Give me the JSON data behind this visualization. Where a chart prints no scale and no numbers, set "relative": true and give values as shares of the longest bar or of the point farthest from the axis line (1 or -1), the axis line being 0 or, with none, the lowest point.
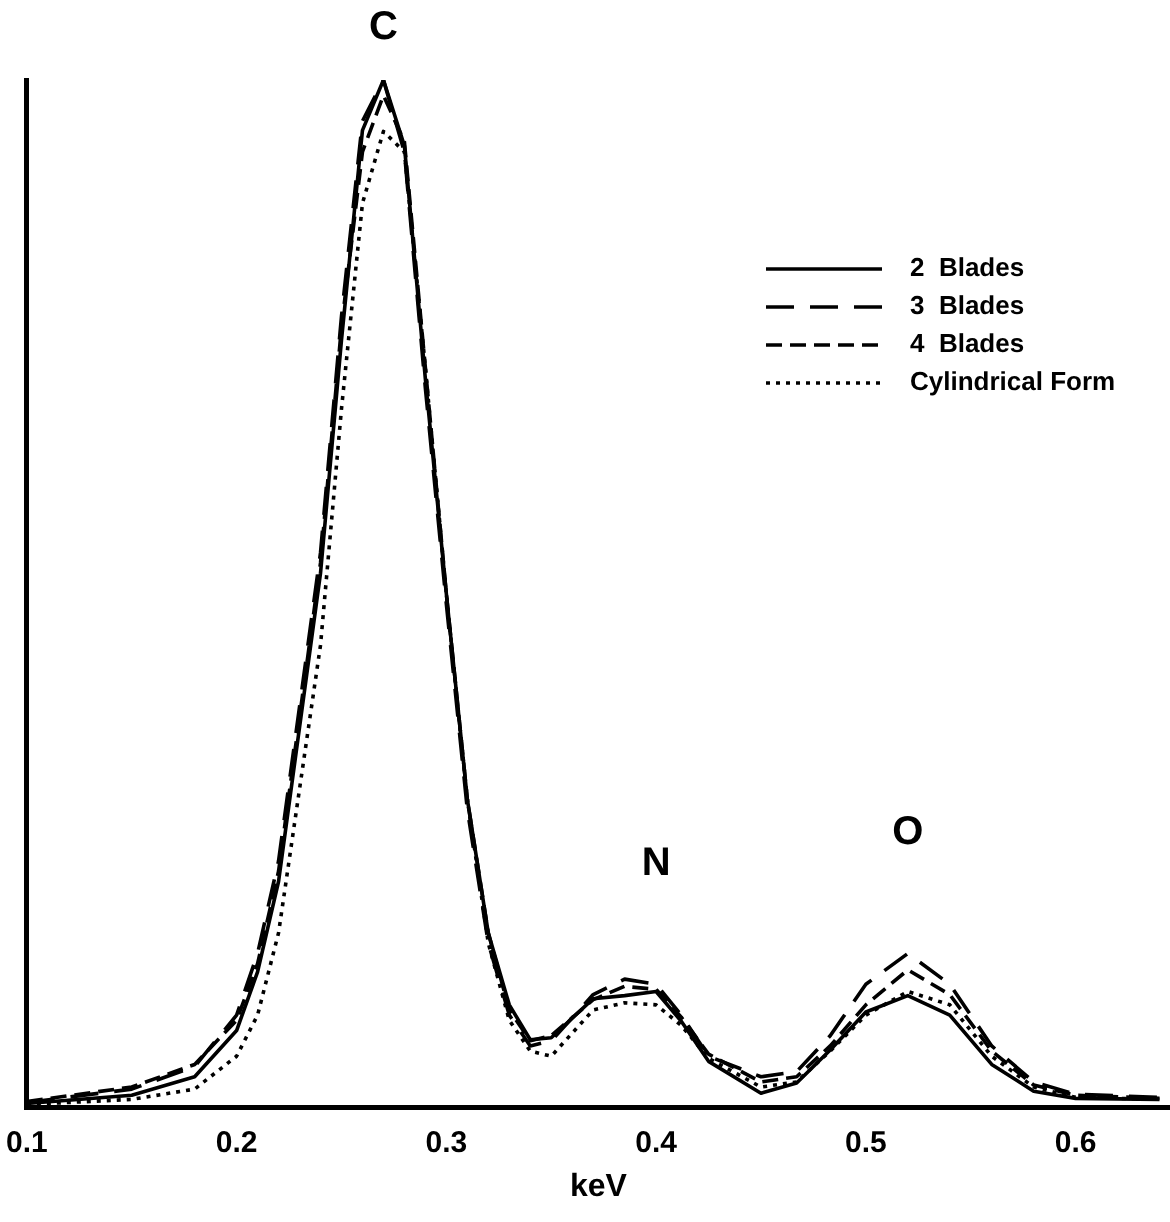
{
  "chart_data": {
    "type": "line",
    "xlabel": "keV",
    "relative": true,
    "legend": "top right",
    "marker": "none",
    "grid": false,
    "x": [
      0.1,
      0.15,
      0.18,
      0.2,
      0.21,
      0.22,
      0.24,
      0.25,
      0.26,
      0.27,
      0.28,
      0.29,
      0.3,
      0.31,
      0.32,
      0.33,
      0.34,
      0.35,
      0.37,
      0.385,
      0.4,
      0.412,
      0.425,
      0.45,
      0.467,
      0.483,
      0.5,
      0.52,
      0.54,
      0.56,
      0.58,
      0.6,
      0.64
    ],
    "xlim": [
      0.1,
      0.645
    ],
    "xticks": [
      0.1,
      0.2,
      0.3,
      0.4,
      0.5,
      0.6
    ],
    "series": [
      {
        "name": "2  Blades",
        "color": "#000000",
        "line_style": "solid",
        "values": [
          0.004,
          0.012,
          0.03,
          0.075,
          0.132,
          0.22,
          0.52,
          0.747,
          0.951,
          1.0,
          0.936,
          0.709,
          0.5,
          0.3,
          0.17,
          0.1,
          0.066,
          0.068,
          0.106,
          0.109,
          0.113,
          0.084,
          0.045,
          0.014,
          0.024,
          0.056,
          0.093,
          0.109,
          0.09,
          0.042,
          0.016,
          0.009,
          0.008
        ]
      },
      {
        "name": "3  Blades",
        "color": "#000000",
        "line_style": "dashed",
        "values": [
          0.005,
          0.018,
          0.04,
          0.09,
          0.15,
          0.24,
          0.54,
          0.77,
          0.96,
          1.0,
          0.93,
          0.7,
          0.49,
          0.29,
          0.16,
          0.09,
          0.06,
          0.065,
          0.11,
          0.125,
          0.12,
          0.09,
          0.05,
          0.03,
          0.035,
          0.07,
          0.12,
          0.15,
          0.12,
          0.06,
          0.025,
          0.013,
          0.01
        ]
      },
      {
        "name": "4  Blades",
        "color": "#000000",
        "line_style": "dashed",
        "values": [
          0.006,
          0.02,
          0.042,
          0.085,
          0.14,
          0.23,
          0.53,
          0.76,
          0.93,
          0.985,
          0.94,
          0.72,
          0.5,
          0.3,
          0.17,
          0.095,
          0.065,
          0.07,
          0.105,
          0.118,
          0.115,
          0.088,
          0.052,
          0.025,
          0.03,
          0.06,
          0.1,
          0.134,
          0.11,
          0.055,
          0.022,
          0.012,
          0.009
        ]
      },
      {
        "name": "Cylindrical Form",
        "color": "#000000",
        "line_style": "dotted",
        "values": [
          0.003,
          0.008,
          0.018,
          0.05,
          0.09,
          0.17,
          0.45,
          0.68,
          0.88,
          0.95,
          0.93,
          0.72,
          0.5,
          0.3,
          0.16,
          0.085,
          0.055,
          0.05,
          0.095,
          0.102,
          0.1,
          0.08,
          0.048,
          0.02,
          0.025,
          0.055,
          0.09,
          0.113,
          0.1,
          0.05,
          0.02,
          0.01,
          0.008
        ]
      }
    ],
    "annotations": [
      "C",
      "N",
      "O"
    ]
  }
}
